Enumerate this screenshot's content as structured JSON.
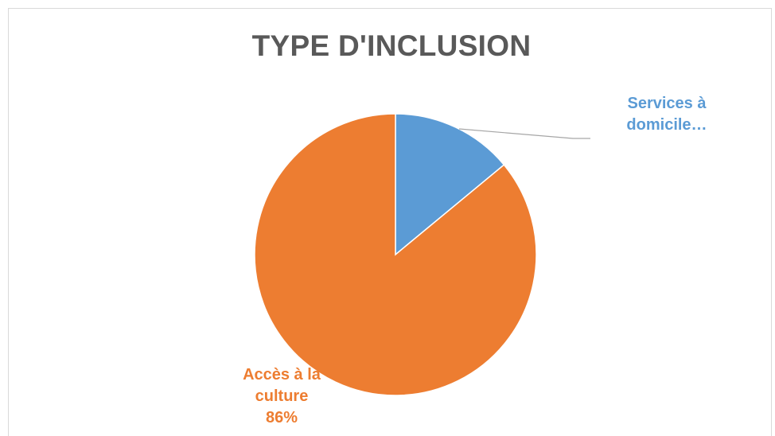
{
  "chart_data": {
    "type": "pie",
    "title": "TYPE D'INCLUSION",
    "slices": [
      {
        "label_lines": [
          "Services à",
          "domicile…"
        ],
        "value": 14,
        "color": "#5b9bd5"
      },
      {
        "label_lines": [
          "Accès à la",
          "culture",
          "86%"
        ],
        "value": 86,
        "color": "#ed7d31"
      }
    ]
  }
}
